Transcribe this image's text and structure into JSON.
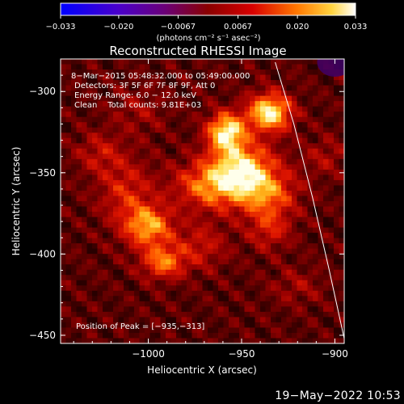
{
  "chart_data": {
    "type": "heatmap",
    "title": "Reconstructed RHESSI Image",
    "xlabel": "Heliocentric X (arcsec)",
    "ylabel": "Heliocentric Y (arcsec)",
    "xlim": [
      -1047,
      -895
    ],
    "ylim": [
      -455,
      -280
    ],
    "x_ticks": [
      -1000,
      -950,
      -900
    ],
    "x_tick_labels": [
      "−1000",
      "−950",
      "−900"
    ],
    "y_ticks": [
      -300,
      -350,
      -400,
      -450
    ],
    "y_tick_labels": [
      "−300",
      "−350",
      "−400",
      "−450"
    ],
    "colorbar": {
      "range": [
        -0.033,
        0.033
      ],
      "ticks": [
        -0.033,
        -0.02,
        -0.0067,
        0.0067,
        0.02,
        0.033
      ],
      "tick_labels": [
        "−0.033",
        "−0.020",
        "−0.0067",
        "0.0067",
        "0.020",
        "0.033"
      ],
      "label": "(photons cm⁻² s⁻¹ asec⁻²)"
    },
    "annotations": {
      "time_range": "8−Mar−2015 05:48:32.000 to 05:49:00.000",
      "detectors": "Detectors: 3F 5F 6F 7F 8F 9F, Att 0",
      "energy_range": "Energy Range: 6.0 − 12.0 keV",
      "clean_counts": "Clean    Total counts: 9.81E+03",
      "peak_position": "Position of Peak = [−935,−313]"
    },
    "sources": [
      {
        "x": -958,
        "y": -325,
        "peak": 0.033,
        "sx": 7,
        "sy": 8
      },
      {
        "x": -935,
        "y": -313,
        "peak": 0.033,
        "sx": 8,
        "sy": 8
      },
      {
        "x": -950,
        "y": -345,
        "peak": 0.024,
        "sx": 12,
        "sy": 10
      },
      {
        "x": -965,
        "y": -358,
        "peak": 0.022,
        "sx": 14,
        "sy": 10
      },
      {
        "x": -938,
        "y": -362,
        "peak": 0.02,
        "sx": 12,
        "sy": 10
      },
      {
        "x": -1000,
        "y": -383,
        "peak": 0.024,
        "sx": 9,
        "sy": 9
      },
      {
        "x": -992,
        "y": -405,
        "peak": 0.02,
        "sx": 8,
        "sy": 7
      },
      {
        "x": -1012,
        "y": -362,
        "peak": 0.012,
        "sx": 10,
        "sy": 14
      },
      {
        "x": -935,
        "y": -384,
        "peak": 0.012,
        "sx": 8,
        "sy": 9
      },
      {
        "x": -972,
        "y": -395,
        "peak": 0.01,
        "sx": 10,
        "sy": 10
      },
      {
        "x": -1026,
        "y": -338,
        "peak": 0.009,
        "sx": 9,
        "sy": 9
      },
      {
        "x": -1005,
        "y": -312,
        "peak": 0.006,
        "sx": 10,
        "sy": 10
      },
      {
        "x": -905,
        "y": -340,
        "peak": 0.007,
        "sx": 8,
        "sy": 8
      },
      {
        "x": -920,
        "y": -420,
        "peak": 0.006,
        "sx": 10,
        "sy": 8
      }
    ],
    "limb_curve": [
      {
        "x": -932,
        "y": -282
      },
      {
        "x": -922,
        "y": -320
      },
      {
        "x": -912,
        "y": -365
      },
      {
        "x": -903,
        "y": -410
      },
      {
        "x": -895,
        "y": -452
      }
    ]
  },
  "footer": {
    "date": "19−May−2022 10:53"
  }
}
